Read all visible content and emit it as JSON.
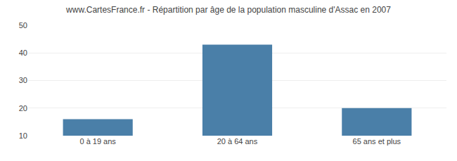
{
  "chart_data": {
    "type": "bar",
    "title": "www.CartesFrance.fr - Répartition par âge de la population masculine d'Assac en 2007",
    "categories": [
      "0 à 19 ans",
      "20 à 64 ans",
      "65 ans et plus"
    ],
    "values": [
      16,
      43,
      20
    ],
    "color": "#4a7fa8",
    "ylim": [
      10,
      50
    ],
    "yticks": [
      10,
      20,
      30,
      40,
      50
    ],
    "grid": true
  }
}
